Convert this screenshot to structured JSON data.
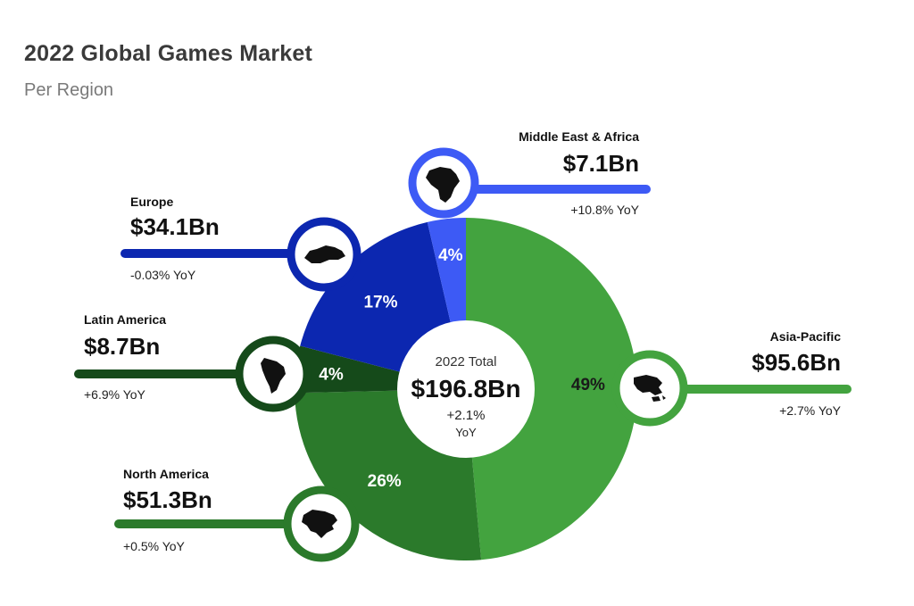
{
  "title": "2022 Global Games Market",
  "subtitle": "Per Region",
  "center": {
    "label": "2022 Total",
    "value": "$196.8Bn",
    "yoy_pct": "+2.1%",
    "yoy": "YoY"
  },
  "chart_data": {
    "type": "pie",
    "title": "2022 Global Games Market",
    "subtitle": "Per Region",
    "unit": "$Bn",
    "total": 196.8,
    "slices": [
      {
        "name": "Asia-Pacific",
        "value": 95.6,
        "percent": 49,
        "percent_label": "49%",
        "value_label": "$95.6Bn",
        "yoy": "+2.7% YoY",
        "color": "#43a33f",
        "text_color": "#1a1a1a",
        "icon": "asia-pacific-map-icon"
      },
      {
        "name": "North America",
        "value": 51.3,
        "percent": 26,
        "percent_label": "26%",
        "value_label": "$51.3Bn",
        "yoy": "+0.5% YoY",
        "color": "#2b7a2b",
        "text_color": "#ffffff",
        "icon": "north-america-map-icon"
      },
      {
        "name": "Latin America",
        "value": 8.7,
        "percent": 4,
        "percent_label": "4%",
        "value_label": "$8.7Bn",
        "yoy": "+6.9% YoY",
        "color": "#154a1a",
        "text_color": "#ffffff",
        "icon": "latin-america-map-icon"
      },
      {
        "name": "Europe",
        "value": 34.1,
        "percent": 17,
        "percent_label": "17%",
        "value_label": "$34.1Bn",
        "yoy": "-0.03% YoY",
        "color": "#0c27b0",
        "text_color": "#ffffff",
        "icon": "europe-map-icon"
      },
      {
        "name": "Middle East & Africa",
        "value": 7.1,
        "percent": 4,
        "percent_label": "4%",
        "value_label": "$7.1Bn",
        "yoy": "+10.8% YoY",
        "color": "#3d5af5",
        "text_color": "#ffffff",
        "icon": "africa-map-icon"
      }
    ]
  }
}
